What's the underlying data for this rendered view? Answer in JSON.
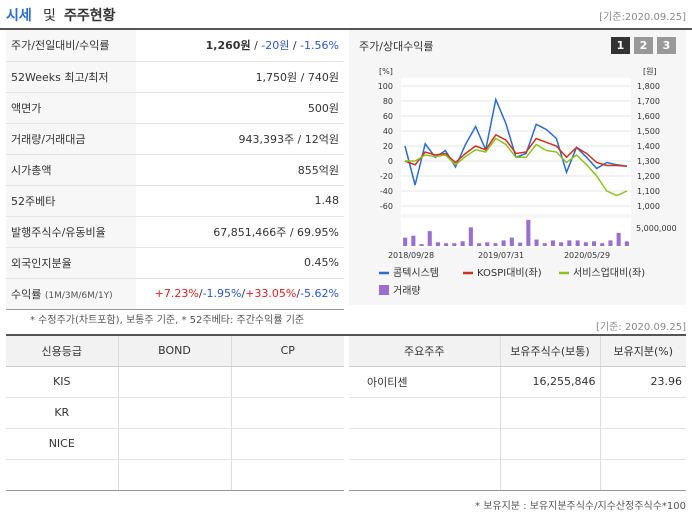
{
  "header": {
    "title_a": "시세",
    "title_b": "및",
    "title_c": "주주현황",
    "date": "[기준:2020.09.25]"
  },
  "summary": {
    "rows": [
      {
        "label": "주가/전일대비/수익률"
      },
      {
        "label": "52Weeks 최고/최저",
        "value": "1,750원 / 740원"
      },
      {
        "label": "액면가",
        "value": "500원"
      },
      {
        "label": "거래량/거래대금",
        "value": "943,393주 / 12억원"
      },
      {
        "label": "시가총액",
        "value": "855억원"
      },
      {
        "label": "52주베타",
        "value": "1.48"
      },
      {
        "label": "발행주식수/유동비율",
        "value": "67,851,466주 / 69.95%"
      },
      {
        "label": "외국인지분율",
        "value": "0.45%"
      },
      {
        "label": "수익률"
      }
    ],
    "price": "1,260원",
    "sep1": " / ",
    "change": "-20원",
    "sep2": " / ",
    "change_pct": "-1.56%",
    "return_periods": "(1M/3M/6M/1Y)",
    "returns": [
      "+7.23%",
      "-1.95%",
      "+33.05%",
      "-5.62%"
    ],
    "slash": "/"
  },
  "notes": {
    "left": "* 수정주가(차트포함), 보통주 기준, * 52주베타: 주간수익률 기준",
    "right": "[기준: 2020.09.25]",
    "footer": "* 보유지분 : 보유지분주식수/지수산정주식수*100"
  },
  "chart": {
    "title": "주가/상대수익률",
    "tabs": [
      "1",
      "2",
      "3"
    ],
    "active_tab": "1",
    "left_unit": "[%]",
    "right_unit": "[원]"
  },
  "chart_data": {
    "type": "line",
    "x_ticks": [
      "2018/09/28",
      "2019/07/31",
      "2020/05/29"
    ],
    "left_axis": {
      "ticks": [
        "100",
        "80",
        "60",
        "40",
        "20",
        "0",
        "-20",
        "-40",
        "-60"
      ],
      "ylim": [
        -60,
        100
      ]
    },
    "right_axis": {
      "ticks": [
        "1,800",
        "1,700",
        "1,600",
        "1,500",
        "1,400",
        "1,300",
        "1,200",
        "1,100",
        "1,000"
      ]
    },
    "volume_axis": {
      "tick": "5,000,000"
    },
    "series": [
      {
        "name": "콤텍시스템",
        "color": "#2a6bd1",
        "values": [
          20,
          -32,
          23,
          5,
          14,
          -8,
          22,
          46,
          15,
          82,
          50,
          5,
          10,
          49,
          42,
          30,
          -15,
          18,
          5,
          -10,
          -2,
          -5,
          -7
        ]
      },
      {
        "name": "KOSPI대비(좌)",
        "color": "#d13020",
        "values": [
          0,
          -5,
          12,
          8,
          10,
          -2,
          10,
          20,
          15,
          35,
          28,
          10,
          12,
          30,
          25,
          20,
          5,
          18,
          10,
          -2,
          -6,
          -6,
          -7
        ]
      },
      {
        "name": "서비스업대비(좌)",
        "color": "#8cc21e",
        "values": [
          0,
          0,
          8,
          6,
          8,
          -5,
          6,
          15,
          12,
          30,
          22,
          5,
          5,
          22,
          14,
          12,
          -2,
          8,
          -5,
          -20,
          -40,
          -46,
          -40
        ]
      }
    ],
    "volume": {
      "name": "거래량",
      "color": "#9b6fd0",
      "values": [
        4.5,
        5.5,
        1,
        8,
        2,
        1.5,
        1.5,
        2.5,
        10,
        1.5,
        2,
        1.5,
        3,
        4.5,
        1.8,
        14,
        3.5,
        1.5,
        3,
        2,
        3,
        3,
        2,
        2.5,
        1.5,
        3,
        7,
        2.5
      ],
      "unit_tick": 5000000
    }
  },
  "credit": {
    "headers": [
      "신용등급",
      "BOND",
      "CP"
    ],
    "rows": [
      [
        "KIS",
        "",
        ""
      ],
      [
        "KR",
        "",
        ""
      ],
      [
        "NICE",
        "",
        ""
      ],
      [
        "",
        "",
        ""
      ]
    ]
  },
  "holders": {
    "headers": [
      "주요주주",
      "보유주식수(보통)",
      "보유지분(%)"
    ],
    "rows": [
      [
        "아이티센",
        "16,255,846",
        "23.96"
      ],
      [
        "",
        "",
        ""
      ],
      [
        "",
        "",
        ""
      ],
      [
        "",
        "",
        ""
      ]
    ]
  }
}
